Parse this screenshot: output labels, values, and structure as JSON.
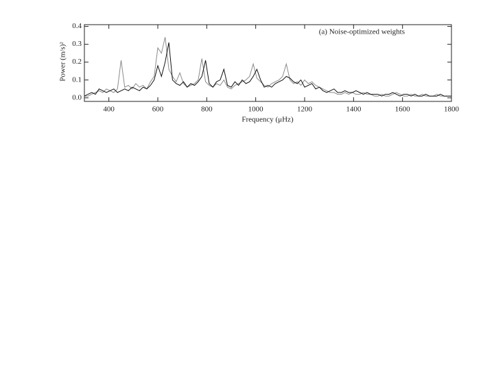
{
  "chart_data": {
    "type": "line",
    "annotation": "(a) Noise-optimized weights",
    "xlabel": "Frequency (μHz)",
    "ylabel": "Power (m/s)²",
    "x": [
      300,
      315,
      330,
      345,
      360,
      375,
      390,
      405,
      420,
      435,
      450,
      465,
      480,
      495,
      510,
      525,
      540,
      555,
      570,
      585,
      600,
      615,
      630,
      645,
      660,
      675,
      690,
      705,
      720,
      735,
      750,
      765,
      780,
      795,
      810,
      825,
      840,
      855,
      870,
      885,
      900,
      915,
      930,
      945,
      960,
      975,
      990,
      1005,
      1020,
      1035,
      1050,
      1065,
      1080,
      1095,
      1110,
      1125,
      1140,
      1155,
      1170,
      1185,
      1200,
      1215,
      1230,
      1245,
      1260,
      1275,
      1290,
      1305,
      1320,
      1335,
      1350,
      1365,
      1380,
      1395,
      1410,
      1425,
      1440,
      1455,
      1470,
      1485,
      1500,
      1515,
      1530,
      1545,
      1560,
      1575,
      1590,
      1605,
      1620,
      1635,
      1650,
      1665,
      1680,
      1695,
      1710,
      1725,
      1740,
      1755,
      1770,
      1785,
      1800
    ],
    "series": [
      {
        "color": "#8a8a8a",
        "values": [
          0.01,
          0.01,
          0.02,
          0.03,
          0.04,
          0.03,
          0.05,
          0.04,
          0.03,
          0.05,
          0.21,
          0.06,
          0.07,
          0.05,
          0.08,
          0.06,
          0.07,
          0.05,
          0.09,
          0.12,
          0.28,
          0.25,
          0.34,
          0.16,
          0.12,
          0.09,
          0.14,
          0.08,
          0.06,
          0.07,
          0.08,
          0.1,
          0.22,
          0.09,
          0.07,
          0.06,
          0.08,
          0.07,
          0.1,
          0.06,
          0.05,
          0.07,
          0.08,
          0.09,
          0.1,
          0.12,
          0.19,
          0.11,
          0.09,
          0.07,
          0.06,
          0.08,
          0.09,
          0.1,
          0.12,
          0.19,
          0.1,
          0.08,
          0.09,
          0.07,
          0.1,
          0.08,
          0.09,
          0.07,
          0.06,
          0.05,
          0.04,
          0.03,
          0.03,
          0.02,
          0.02,
          0.03,
          0.02,
          0.03,
          0.02,
          0.02,
          0.03,
          0.02,
          0.02,
          0.01,
          0.01,
          0.02,
          0.01,
          0.01,
          0.02,
          0.03,
          0.02,
          0.01,
          0.01,
          0.02,
          0.01,
          0.01,
          0.02,
          0.01,
          0.01,
          0.01,
          0.02,
          0.01,
          0.01,
          0.01,
          0.01
        ]
      },
      {
        "color": "#111111",
        "values": [
          0.01,
          0.02,
          0.03,
          0.02,
          0.05,
          0.04,
          0.03,
          0.04,
          0.05,
          0.03,
          0.04,
          0.05,
          0.04,
          0.06,
          0.05,
          0.04,
          0.06,
          0.05,
          0.07,
          0.1,
          0.18,
          0.12,
          0.2,
          0.31,
          0.1,
          0.08,
          0.07,
          0.09,
          0.06,
          0.08,
          0.07,
          0.09,
          0.12,
          0.21,
          0.08,
          0.06,
          0.09,
          0.1,
          0.16,
          0.07,
          0.06,
          0.09,
          0.07,
          0.1,
          0.08,
          0.09,
          0.12,
          0.16,
          0.1,
          0.06,
          0.07,
          0.06,
          0.08,
          0.09,
          0.1,
          0.12,
          0.11,
          0.09,
          0.08,
          0.1,
          0.06,
          0.07,
          0.08,
          0.05,
          0.06,
          0.04,
          0.03,
          0.04,
          0.05,
          0.03,
          0.03,
          0.04,
          0.03,
          0.03,
          0.04,
          0.03,
          0.02,
          0.03,
          0.02,
          0.02,
          0.02,
          0.01,
          0.02,
          0.02,
          0.03,
          0.02,
          0.01,
          0.02,
          0.02,
          0.01,
          0.02,
          0.01,
          0.01,
          0.02,
          0.01,
          0.01,
          0.01,
          0.02,
          0.01,
          0.01,
          0.01
        ]
      }
    ],
    "xlim": [
      300,
      1800
    ],
    "xticks": [
      400,
      600,
      800,
      1000,
      1200,
      1400,
      1600,
      1800
    ],
    "ylim": [
      -0.02,
      0.41
    ],
    "yticks": [
      {
        "value": 0,
        "label": "0.0"
      },
      0.1,
      0.2,
      0.3,
      0.4
    ]
  }
}
